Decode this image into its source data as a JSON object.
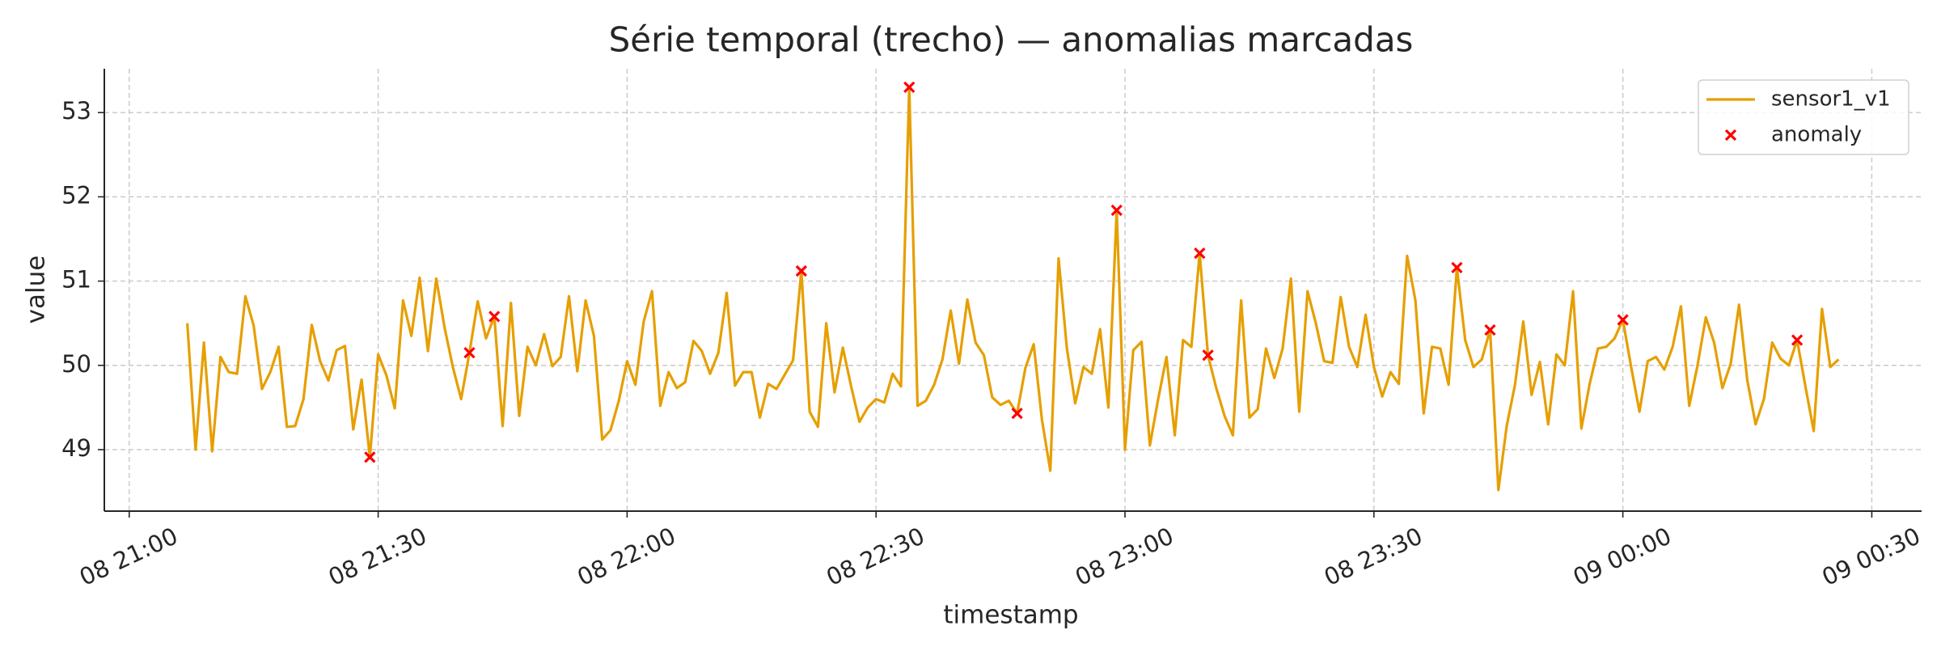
{
  "chart_data": {
    "type": "line",
    "title": "Série temporal (trecho) — anomalias marcadas",
    "xlabel": "timestamp",
    "ylabel": "value",
    "x": [
      "08 21:07",
      "08 21:08",
      "08 21:09",
      "08 21:10",
      "08 21:11",
      "08 21:12",
      "08 21:13",
      "08 21:14",
      "08 21:15",
      "08 21:16",
      "08 21:17",
      "08 21:18",
      "08 21:19",
      "08 21:20",
      "08 21:21",
      "08 21:22",
      "08 21:23",
      "08 21:24",
      "08 21:25",
      "08 21:26",
      "08 21:27",
      "08 21:28",
      "08 21:29",
      "08 21:30",
      "08 21:31",
      "08 21:32",
      "08 21:33",
      "08 21:34",
      "08 21:35",
      "08 21:36",
      "08 21:37",
      "08 21:38",
      "08 21:39",
      "08 21:40",
      "08 21:41",
      "08 21:42",
      "08 21:43",
      "08 21:44",
      "08 21:45",
      "08 21:46",
      "08 21:47",
      "08 21:48",
      "08 21:49",
      "08 21:50",
      "08 21:51",
      "08 21:52",
      "08 21:53",
      "08 21:54",
      "08 21:55",
      "08 21:56",
      "08 21:57",
      "08 21:58",
      "08 21:59",
      "08 22:00",
      "08 22:01",
      "08 22:02",
      "08 22:03",
      "08 22:04",
      "08 22:05",
      "08 22:06",
      "08 22:07",
      "08 22:08",
      "08 22:09",
      "08 22:10",
      "08 22:11",
      "08 22:12",
      "08 22:13",
      "08 22:14",
      "08 22:15",
      "08 22:16",
      "08 22:17",
      "08 22:18",
      "08 22:19",
      "08 22:20",
      "08 22:21",
      "08 22:22",
      "08 22:23",
      "08 22:24",
      "08 22:25",
      "08 22:26",
      "08 22:27",
      "08 22:28",
      "08 22:29",
      "08 22:30",
      "08 22:31",
      "08 22:32",
      "08 22:33",
      "08 22:34",
      "08 22:35",
      "08 22:36",
      "08 22:37",
      "08 22:38",
      "08 22:39",
      "08 22:40",
      "08 22:41",
      "08 22:42",
      "08 22:43",
      "08 22:44",
      "08 22:45",
      "08 22:46",
      "08 22:47",
      "08 22:48",
      "08 22:49",
      "08 22:50",
      "08 22:51",
      "08 22:52",
      "08 22:53",
      "08 22:54",
      "08 22:55",
      "08 22:56",
      "08 22:57",
      "08 22:58",
      "08 22:59",
      "08 23:00",
      "08 23:01",
      "08 23:02",
      "08 23:03",
      "08 23:04",
      "08 23:05",
      "08 23:06",
      "08 23:07",
      "08 23:08",
      "08 23:09",
      "08 23:10",
      "08 23:11",
      "08 23:12",
      "08 23:13",
      "08 23:14",
      "08 23:15",
      "08 23:16",
      "08 23:17",
      "08 23:18",
      "08 23:19",
      "08 23:20",
      "08 23:21",
      "08 23:22",
      "08 23:23",
      "08 23:24",
      "08 23:25",
      "08 23:26",
      "08 23:27",
      "08 23:28",
      "08 23:29",
      "08 23:30",
      "08 23:31",
      "08 23:32",
      "08 23:33",
      "08 23:34",
      "08 23:35",
      "08 23:36",
      "08 23:37",
      "08 23:38",
      "08 23:39",
      "08 23:40",
      "08 23:41",
      "08 23:42",
      "08 23:43",
      "08 23:44",
      "08 23:45",
      "08 23:46",
      "08 23:47",
      "08 23:48",
      "08 23:49",
      "08 23:50",
      "08 23:51",
      "08 23:52",
      "08 23:53",
      "08 23:54",
      "08 23:55",
      "08 23:56",
      "08 23:57",
      "08 23:58",
      "08 23:59",
      "09 00:00",
      "09 00:01",
      "09 00:02",
      "09 00:03",
      "09 00:04",
      "09 00:05",
      "09 00:06",
      "09 00:07",
      "09 00:08",
      "09 00:09",
      "09 00:10",
      "09 00:11",
      "09 00:12",
      "09 00:13",
      "09 00:14",
      "09 00:15",
      "09 00:16",
      "09 00:17",
      "09 00:18",
      "09 00:19",
      "09 00:20",
      "09 00:21",
      "09 00:22",
      "09 00:23",
      "09 00:24",
      "09 00:25",
      "09 00:26"
    ],
    "series": [
      {
        "name": "sensor1_v1",
        "color": "#e69f00",
        "values": [
          50.5,
          49.0,
          50.27,
          48.98,
          50.1,
          49.92,
          49.9,
          50.82,
          50.47,
          49.72,
          49.92,
          50.22,
          49.27,
          49.28,
          49.6,
          50.48,
          50.05,
          49.82,
          50.18,
          50.23,
          49.24,
          49.83,
          48.91,
          50.13,
          49.88,
          49.49,
          50.77,
          50.35,
          51.04,
          50.17,
          51.03,
          50.45,
          49.98,
          49.6,
          50.15,
          50.76,
          50.32,
          50.58,
          49.28,
          50.74,
          49.4,
          50.22,
          50.0,
          50.37,
          49.99,
          50.1,
          50.82,
          49.93,
          50.77,
          50.35,
          49.12,
          49.23,
          49.58,
          50.05,
          49.77,
          50.52,
          50.88,
          49.52,
          49.92,
          49.73,
          49.8,
          50.29,
          50.17,
          49.9,
          50.15,
          50.86,
          49.76,
          49.92,
          49.92,
          49.38,
          49.78,
          49.72,
          49.89,
          50.06,
          51.12,
          49.45,
          49.27,
          50.5,
          49.68,
          50.21,
          49.75,
          49.33,
          49.5,
          49.6,
          49.56,
          49.9,
          49.75,
          53.3,
          49.52,
          49.58,
          49.77,
          50.07,
          50.65,
          50.02,
          50.78,
          50.27,
          50.12,
          49.62,
          49.53,
          49.58,
          49.43,
          49.97,
          50.25,
          49.35,
          48.75,
          51.27,
          50.2,
          49.55,
          49.98,
          49.9,
          50.43,
          49.5,
          51.84,
          49.0,
          50.18,
          50.28,
          49.05,
          49.6,
          50.1,
          49.17,
          50.3,
          50.22,
          51.33,
          50.12,
          49.73,
          49.4,
          49.17,
          50.77,
          49.38,
          49.48,
          50.2,
          49.85,
          50.2,
          51.03,
          49.45,
          50.88,
          50.5,
          50.05,
          50.03,
          50.81,
          50.22,
          49.98,
          50.6,
          49.98,
          49.63,
          49.92,
          49.78,
          51.3,
          50.77,
          49.43,
          50.22,
          50.2,
          49.77,
          51.16,
          50.3,
          49.98,
          50.07,
          50.42,
          48.52,
          49.28,
          49.77,
          50.52,
          49.65,
          50.04,
          49.3,
          50.13,
          50.0,
          50.88,
          49.25,
          49.78,
          50.2,
          50.22,
          50.32,
          50.54,
          49.98,
          49.45,
          50.05,
          50.1,
          49.95,
          50.22,
          50.7,
          49.52,
          50.0,
          50.57,
          50.27,
          49.73,
          50.02,
          50.72,
          49.82,
          49.3,
          49.6,
          50.27,
          50.08,
          50.0,
          50.3,
          49.75,
          49.22,
          50.67,
          49.98,
          50.07
        ]
      },
      {
        "name": "anomaly",
        "type": "scatter",
        "color": "#ff0000",
        "x": [
          "08 21:29",
          "08 21:41",
          "08 21:44",
          "08 22:21",
          "08 22:34",
          "08 22:47",
          "08 22:59",
          "08 23:09",
          "08 23:10",
          "08 23:40",
          "08 23:44",
          "09 00:00",
          "09 00:21"
        ],
        "values": [
          48.91,
          50.15,
          50.58,
          51.12,
          53.3,
          49.43,
          51.84,
          51.33,
          50.12,
          51.16,
          50.42,
          50.54,
          50.3
        ]
      }
    ],
    "xlim": [
      "08 20:57",
      "09 00:36"
    ],
    "xticks": [
      "08 21:00",
      "08 21:30",
      "08 22:00",
      "08 22:30",
      "08 23:00",
      "08 23:30",
      "09 00:00",
      "09 00:30"
    ],
    "ylim": [
      48.27,
      53.52
    ],
    "yticks": [
      49,
      50,
      51,
      52,
      53
    ],
    "grid": true,
    "legend": "upper right"
  }
}
